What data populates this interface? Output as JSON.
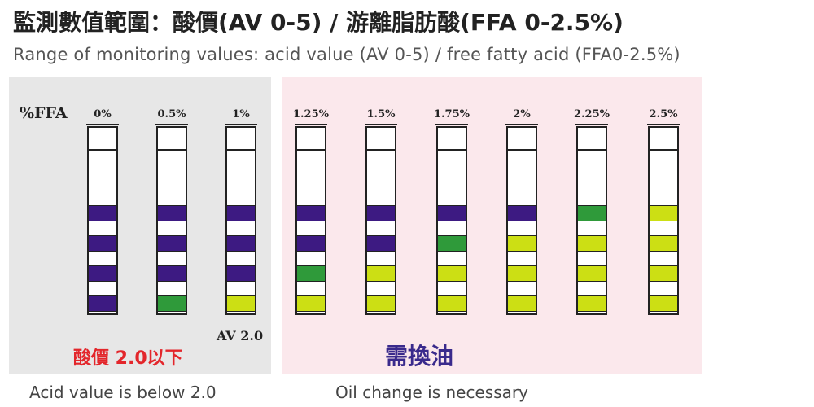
{
  "title": "監測數值範圍：酸價(AV 0-5) / 游離脂肪酸(FFA 0-2.5%)",
  "subtitle": "Range of monitoring values: acid value (AV 0-5) / free fatty acid (FFA0-2.5%)",
  "ffa_label": "%FFA",
  "colors": {
    "purple": "#3d1a82",
    "green": "#2f9a3a",
    "yellow": "#ccdf14",
    "white": "#ffffff",
    "outline": "#222222",
    "gray_panel": "#e7e7e7",
    "pink_panel": "#fbe8ec",
    "warning_red": "#e3262b",
    "indigo_text": "#3a2a8c"
  },
  "strips": [
    {
      "label": "0%",
      "pads": [
        "purple",
        "purple",
        "purple",
        "purple"
      ]
    },
    {
      "label": "0.5%",
      "pads": [
        "purple",
        "purple",
        "purple",
        "green"
      ]
    },
    {
      "label": "1%",
      "pads": [
        "purple",
        "purple",
        "purple",
        "yellow"
      ]
    },
    {
      "label": "1.25%",
      "pads": [
        "purple",
        "purple",
        "green",
        "yellow"
      ]
    },
    {
      "label": "1.5%",
      "pads": [
        "purple",
        "purple",
        "yellow",
        "yellow"
      ]
    },
    {
      "label": "1.75%",
      "pads": [
        "purple",
        "green",
        "yellow",
        "yellow"
      ]
    },
    {
      "label": "2%",
      "pads": [
        "purple",
        "yellow",
        "yellow",
        "yellow"
      ]
    },
    {
      "label": "2.25%",
      "pads": [
        "green",
        "yellow",
        "yellow",
        "yellow"
      ]
    },
    {
      "label": "2.5%",
      "pads": [
        "yellow",
        "yellow",
        "yellow",
        "yellow"
      ]
    }
  ],
  "av_marker": "AV 2.0",
  "safe_section": {
    "label_cn": "酸價 2.0以下",
    "label_en": "Acid value is below 2.0"
  },
  "change_section": {
    "label_cn": "需換油",
    "label_en": "Oil change is necessary"
  }
}
